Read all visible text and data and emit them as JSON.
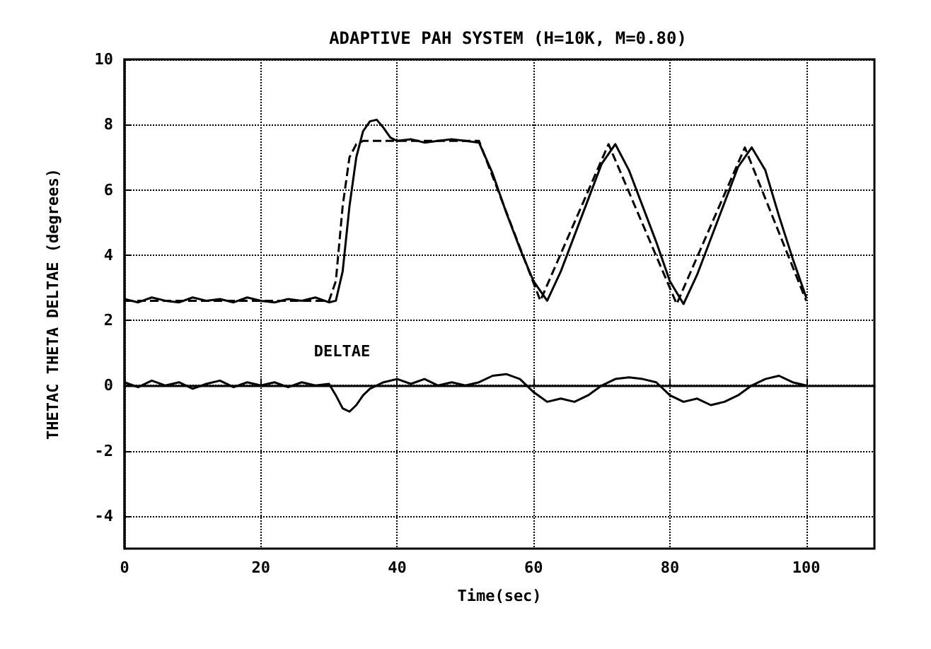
{
  "chart_data": {
    "type": "line",
    "title": "ADAPTIVE PAH SYSTEM (H=10K, M=0.80)",
    "xlabel": "Time(sec)",
    "ylabel": "THETAC THETA DELTAE (degrees)",
    "xlim": [
      0,
      110
    ],
    "xticks": [
      0,
      20,
      40,
      60,
      80,
      100
    ],
    "ylim": [
      -5,
      10
    ],
    "yticks": [
      -4,
      -2,
      0,
      2,
      4,
      6,
      8,
      10
    ],
    "grid": true,
    "marker": "none",
    "annotations": [
      "DELTAE"
    ],
    "series": [
      {
        "color": "#000000",
        "line_style": "solid",
        "x": [
          0,
          2,
          4,
          6,
          8,
          10,
          12,
          14,
          16,
          18,
          20,
          22,
          24,
          26,
          28,
          30,
          31,
          32,
          33,
          34,
          35,
          36,
          37,
          38,
          39,
          40,
          42,
          44,
          46,
          48,
          50,
          52,
          54,
          56,
          58,
          60,
          62,
          64,
          66,
          68,
          70,
          72,
          74,
          76,
          78,
          80,
          82,
          84,
          86,
          88,
          90,
          92,
          94,
          96,
          98,
          100
        ],
        "values": [
          2.65,
          2.55,
          2.7,
          2.6,
          2.55,
          2.7,
          2.6,
          2.65,
          2.55,
          2.7,
          2.6,
          2.55,
          2.65,
          2.6,
          2.7,
          2.55,
          2.6,
          3.5,
          5.5,
          7.0,
          7.8,
          8.1,
          8.15,
          7.9,
          7.6,
          7.5,
          7.55,
          7.45,
          7.5,
          7.55,
          7.5,
          7.45,
          6.5,
          5.3,
          4.2,
          3.2,
          2.6,
          3.5,
          4.6,
          5.7,
          6.8,
          7.4,
          6.6,
          5.5,
          4.4,
          3.2,
          2.5,
          3.4,
          4.5,
          5.6,
          6.7,
          7.3,
          6.6,
          5.2,
          3.9,
          2.7
        ]
      },
      {
        "color": "#000000",
        "line_style": "dashed",
        "x": [
          0,
          30,
          31,
          32,
          33,
          34,
          35,
          52,
          61,
          71,
          81,
          91,
          100
        ],
        "values": [
          2.6,
          2.6,
          3.2,
          5.5,
          7.0,
          7.4,
          7.5,
          7.5,
          2.6,
          7.4,
          2.5,
          7.3,
          2.6
        ]
      },
      {
        "color": "#000000",
        "line_style": "solid",
        "x": [
          0,
          2,
          4,
          6,
          8,
          10,
          12,
          14,
          16,
          18,
          20,
          22,
          24,
          26,
          28,
          30,
          31,
          32,
          33,
          34,
          35,
          36,
          38,
          40,
          42,
          44,
          46,
          48,
          50,
          52,
          54,
          56,
          58,
          60,
          62,
          64,
          66,
          68,
          70,
          72,
          74,
          76,
          78,
          80,
          82,
          84,
          86,
          88,
          90,
          92,
          94,
          96,
          98,
          100
        ],
        "values": [
          0.1,
          -0.05,
          0.15,
          0,
          0.1,
          -0.1,
          0.05,
          0.15,
          -0.05,
          0.1,
          0,
          0.1,
          -0.05,
          0.1,
          0,
          0.05,
          -0.3,
          -0.7,
          -0.8,
          -0.6,
          -0.3,
          -0.1,
          0.1,
          0.2,
          0.05,
          0.2,
          0,
          0.1,
          0,
          0.1,
          0.3,
          0.35,
          0.2,
          -0.2,
          -0.5,
          -0.4,
          -0.5,
          -0.3,
          0,
          0.2,
          0.25,
          0.2,
          0.1,
          -0.3,
          -0.5,
          -0.4,
          -0.6,
          -0.5,
          -0.3,
          0,
          0.2,
          0.3,
          0.1,
          0
        ]
      }
    ]
  }
}
